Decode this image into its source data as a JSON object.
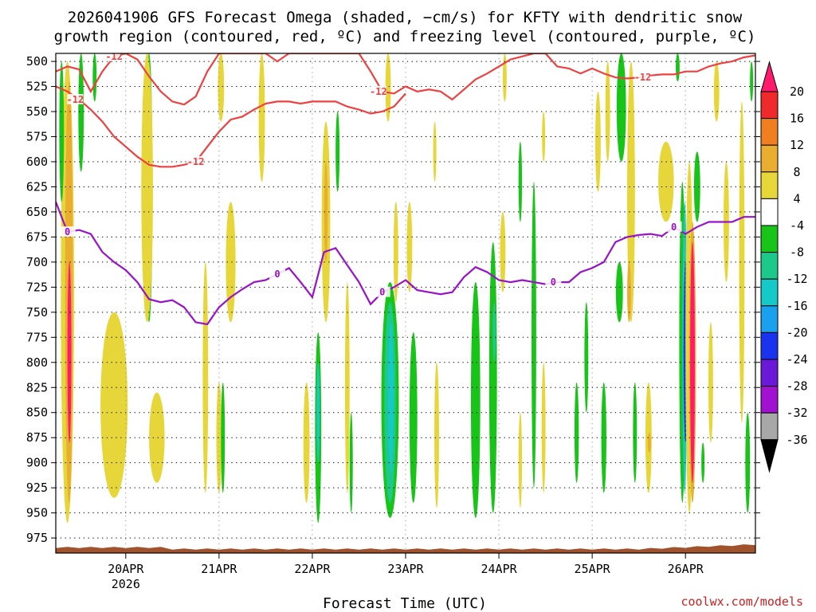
{
  "title": {
    "line1": "2026041906 GFS Forecast Omega (shaded, −cm/s) for KFTY with dendritic snow",
    "line2": "growth region (contoured, red, ºC) and freezing level (contoured, purple, ºC)"
  },
  "credit": "coolwx.com/models",
  "chart_data": {
    "type": "heatmap",
    "title": "2026041906 GFS Forecast Omega (shaded, −cm/s) for KFTY with dendritic snow growth region (contoured, red, ºC) and freezing level (contoured, purple, ºC)",
    "xlabel": "Forecast Time (UTC)",
    "ylabel": "",
    "x_unit": "hours since 2026-04-19 06 UTC",
    "xlim": [
      0,
      180
    ],
    "ylim": [
      990,
      492
    ],
    "y_ticks": [
      500,
      525,
      550,
      575,
      600,
      625,
      650,
      675,
      700,
      725,
      750,
      775,
      800,
      825,
      850,
      875,
      900,
      925,
      950,
      975
    ],
    "x_ticks": [
      {
        "x": 18,
        "label": "20APR",
        "sub": "2026"
      },
      {
        "x": 42,
        "label": "21APR",
        "sub": ""
      },
      {
        "x": 66,
        "label": "22APR",
        "sub": ""
      },
      {
        "x": 90,
        "label": "23APR",
        "sub": ""
      },
      {
        "x": 114,
        "label": "24APR",
        "sub": ""
      },
      {
        "x": 138,
        "label": "25APR",
        "sub": ""
      },
      {
        "x": 162,
        "label": "26APR",
        "sub": ""
      }
    ],
    "grid": true,
    "colorbar": {
      "levels": [
        20,
        16,
        12,
        8,
        4,
        -4,
        -8,
        -12,
        -16,
        -20,
        -24,
        -28,
        -32,
        -36
      ],
      "colors": [
        "#ff1a6e",
        "#ee2a2a",
        "#f07f22",
        "#e9ad30",
        "#e7d63a",
        "#ffffff",
        "#18c418",
        "#1cc88a",
        "#16c9c9",
        "#19a1ee",
        "#1a33ee",
        "#6a1ad6",
        "#a012d0",
        "#a8a8a8",
        "#000000"
      ]
    },
    "omega_features": [
      {
        "name": "yellow-early-1",
        "t": 3.0,
        "p_top": 500,
        "p_bot": 960,
        "w": 3.4,
        "value": 5
      },
      {
        "name": "orange-early",
        "t": 3.4,
        "p_top": 520,
        "p_bot": 940,
        "w": 2.0,
        "value": 10
      },
      {
        "name": "pink-early",
        "t": 3.5,
        "p_top": 700,
        "p_bot": 880,
        "w": 1.0,
        "value": 20
      },
      {
        "name": "green-early-1",
        "t": 1.5,
        "p_top": 500,
        "p_bot": 640,
        "w": 1.2,
        "value": -6
      },
      {
        "name": "green-early-2",
        "t": 6.5,
        "p_top": 492,
        "p_bot": 610,
        "w": 1.4,
        "value": -6
      },
      {
        "name": "green-early-3",
        "t": 10.0,
        "p_top": 492,
        "p_bot": 540,
        "w": 1.0,
        "value": -6
      },
      {
        "name": "yellow-20apr",
        "t": 15.0,
        "p_top": 750,
        "p_bot": 935,
        "w": 7.0,
        "value": 5
      },
      {
        "name": "yellow-20apr-low",
        "t": 26.0,
        "p_top": 830,
        "p_bot": 920,
        "w": 4.0,
        "value": 5
      },
      {
        "name": "green-20apr",
        "t": 24.0,
        "p_top": 492,
        "p_bot": 760,
        "w": 1.8,
        "value": -6
      },
      {
        "name": "yellow-20apr-up",
        "t": 23.5,
        "p_top": 492,
        "p_bot": 760,
        "w": 3.0,
        "value": 5
      },
      {
        "name": "yellow-21apr-a",
        "t": 38.5,
        "p_top": 700,
        "p_bot": 930,
        "w": 1.4,
        "value": 5
      },
      {
        "name": "yellow-21apr-b",
        "t": 42.0,
        "p_top": 820,
        "p_bot": 930,
        "w": 1.4,
        "value": 5
      },
      {
        "name": "green-21apr",
        "t": 43.0,
        "p_top": 820,
        "p_bot": 930,
        "w": 1.0,
        "value": -6
      },
      {
        "name": "yellow-21apr-up",
        "t": 42.5,
        "p_top": 492,
        "p_bot": 560,
        "w": 1.6,
        "value": 5
      },
      {
        "name": "yellow-21apr-m",
        "t": 45.0,
        "p_top": 640,
        "p_bot": 760,
        "w": 2.5,
        "value": 5
      },
      {
        "name": "yellow-22apr-up",
        "t": 53.0,
        "p_top": 492,
        "p_bot": 620,
        "w": 1.6,
        "value": 5
      },
      {
        "name": "yellow-22apr-low",
        "t": 64.5,
        "p_top": 820,
        "p_bot": 940,
        "w": 1.6,
        "value": 5
      },
      {
        "name": "green-22apr-low",
        "t": 67.5,
        "p_top": 770,
        "p_bot": 960,
        "w": 1.6,
        "value": -6
      },
      {
        "name": "cyan-22apr",
        "t": 67.5,
        "p_top": 800,
        "p_bot": 900,
        "w": 0.8,
        "value": -14
      },
      {
        "name": "yellow-22apr-mid",
        "t": 69.5,
        "p_top": 560,
        "p_bot": 760,
        "w": 2.2,
        "value": 5
      },
      {
        "name": "orange-22apr",
        "t": 69.5,
        "p_top": 600,
        "p_bot": 700,
        "w": 0.9,
        "value": 10
      },
      {
        "name": "green-22apr-up",
        "t": 72.5,
        "p_top": 550,
        "p_bot": 630,
        "w": 1.0,
        "value": -6
      },
      {
        "name": "yellow-22apr-b",
        "t": 75.0,
        "p_top": 720,
        "p_bot": 930,
        "w": 1.2,
        "value": 5
      },
      {
        "name": "green-22apr-b",
        "t": 76.0,
        "p_top": 850,
        "p_bot": 950,
        "w": 0.8,
        "value": -6
      },
      {
        "name": "yellow-23apr-up",
        "t": 85.5,
        "p_top": 492,
        "p_bot": 560,
        "w": 1.4,
        "value": 5
      },
      {
        "name": "yellow-23apr-m",
        "t": 87.5,
        "p_top": 640,
        "p_bot": 740,
        "w": 1.2,
        "value": 5
      },
      {
        "name": "green-23apr",
        "t": 86.0,
        "p_top": 720,
        "p_bot": 955,
        "w": 4.5,
        "value": -6
      },
      {
        "name": "teal-23apr",
        "t": 86.0,
        "p_top": 740,
        "p_bot": 940,
        "w": 3.0,
        "value": -10
      },
      {
        "name": "cyan-23apr",
        "t": 86.2,
        "p_top": 760,
        "p_bot": 910,
        "w": 1.4,
        "value": -14
      },
      {
        "name": "yellow-23apr-b",
        "t": 91.0,
        "p_top": 640,
        "p_bot": 730,
        "w": 1.4,
        "value": 5
      },
      {
        "name": "green-23apr-b",
        "t": 92.0,
        "p_top": 770,
        "p_bot": 940,
        "w": 2.0,
        "value": -6
      },
      {
        "name": "yellow-23apr-c",
        "t": 98.0,
        "p_top": 800,
        "p_bot": 945,
        "w": 1.2,
        "value": 5
      },
      {
        "name": "yellow-23apr-d",
        "t": 97.5,
        "p_top": 560,
        "p_bot": 620,
        "w": 0.8,
        "value": 5
      },
      {
        "name": "green-24apr-a",
        "t": 108.0,
        "p_top": 720,
        "p_bot": 955,
        "w": 2.4,
        "value": -6
      },
      {
        "name": "green-24apr-b",
        "t": 112.5,
        "p_top": 680,
        "p_bot": 950,
        "w": 2.0,
        "value": -6
      },
      {
        "name": "teal-24apr",
        "t": 112.8,
        "p_top": 740,
        "p_bot": 800,
        "w": 0.6,
        "value": -10
      },
      {
        "name": "yellow-24apr-a",
        "t": 115.0,
        "p_top": 650,
        "p_bot": 730,
        "w": 1.4,
        "value": 5
      },
      {
        "name": "yellow-24apr-b",
        "t": 115.5,
        "p_top": 492,
        "p_bot": 540,
        "w": 1.0,
        "value": 5
      },
      {
        "name": "green-24apr-c",
        "t": 119.5,
        "p_top": 580,
        "p_bot": 660,
        "w": 0.9,
        "value": -6
      },
      {
        "name": "yellow-24apr-c",
        "t": 119.5,
        "p_top": 850,
        "p_bot": 945,
        "w": 0.9,
        "value": 5
      },
      {
        "name": "green-24apr-d",
        "t": 123.0,
        "p_top": 620,
        "p_bot": 925,
        "w": 1.2,
        "value": -6
      },
      {
        "name": "yellow-24apr-d",
        "t": 125.5,
        "p_top": 550,
        "p_bot": 600,
        "w": 0.8,
        "value": 5
      },
      {
        "name": "yellow-24apr-e",
        "t": 125.5,
        "p_top": 800,
        "p_bot": 930,
        "w": 1.0,
        "value": 5
      },
      {
        "name": "green-25apr-a",
        "t": 134.0,
        "p_top": 820,
        "p_bot": 920,
        "w": 1.1,
        "value": -6
      },
      {
        "name": "green-25apr-b",
        "t": 136.5,
        "p_top": 740,
        "p_bot": 850,
        "w": 1.0,
        "value": -6
      },
      {
        "name": "yellow-25apr-a",
        "t": 139.5,
        "p_top": 530,
        "p_bot": 630,
        "w": 1.4,
        "value": 5
      },
      {
        "name": "yellow-25apr-b",
        "t": 142.0,
        "p_top": 500,
        "p_bot": 600,
        "w": 1.2,
        "value": 5
      },
      {
        "name": "green-25apr-c",
        "t": 141.0,
        "p_top": 820,
        "p_bot": 930,
        "w": 1.3,
        "value": -6
      },
      {
        "name": "cyan-25apr-up",
        "t": 145.5,
        "p_top": 492,
        "p_bot": 560,
        "w": 1.4,
        "value": -14
      },
      {
        "name": "green-25apr-up",
        "t": 145.5,
        "p_top": 492,
        "p_bot": 600,
        "w": 2.4,
        "value": -6
      },
      {
        "name": "yellow-25apr-c",
        "t": 148.0,
        "p_top": 500,
        "p_bot": 760,
        "w": 2.0,
        "value": 5
      },
      {
        "name": "green-25apr-d",
        "t": 145.0,
        "p_top": 700,
        "p_bot": 760,
        "w": 1.8,
        "value": -6
      },
      {
        "name": "orange-25apr",
        "t": 147.5,
        "p_top": 700,
        "p_bot": 760,
        "w": 1.0,
        "value": 10
      },
      {
        "name": "green-25apr-e",
        "t": 149.0,
        "p_top": 820,
        "p_bot": 920,
        "w": 1.0,
        "value": -6
      },
      {
        "name": "yellow-26apr-a",
        "t": 152.5,
        "p_top": 820,
        "p_bot": 930,
        "w": 1.6,
        "value": 5
      },
      {
        "name": "orange-26apr-a",
        "t": 152.7,
        "p_top": 870,
        "p_bot": 890,
        "w": 0.6,
        "value": 10
      },
      {
        "name": "yellow-26apr-b",
        "t": 157.0,
        "p_top": 580,
        "p_bot": 660,
        "w": 4.0,
        "value": 5
      },
      {
        "name": "green-26apr-up",
        "t": 160.0,
        "p_top": 492,
        "p_bot": 520,
        "w": 1.0,
        "value": -6
      },
      {
        "name": "green-26apr",
        "t": 161.2,
        "p_top": 620,
        "p_bot": 940,
        "w": 1.6,
        "value": -6
      },
      {
        "name": "cyan-26apr",
        "t": 161.8,
        "p_top": 640,
        "p_bot": 930,
        "w": 1.2,
        "value": -14
      },
      {
        "name": "blue-26apr",
        "t": 162.0,
        "p_top": 700,
        "p_bot": 880,
        "w": 1.0,
        "value": -22
      },
      {
        "name": "yellow-26apr-c",
        "t": 163.0,
        "p_top": 600,
        "p_bot": 950,
        "w": 2.0,
        "value": 5
      },
      {
        "name": "orange-26apr",
        "t": 163.8,
        "p_top": 660,
        "p_bot": 940,
        "w": 1.8,
        "value": 10
      },
      {
        "name": "pink-26apr",
        "t": 163.8,
        "p_top": 680,
        "p_bot": 920,
        "w": 1.2,
        "value": 20
      },
      {
        "name": "green-26apr-b",
        "t": 165.0,
        "p_top": 590,
        "p_bot": 660,
        "w": 1.6,
        "value": -6
      },
      {
        "name": "green-26apr-c",
        "t": 166.5,
        "p_top": 880,
        "p_bot": 920,
        "w": 0.8,
        "value": -6
      },
      {
        "name": "yellow-26apr-d",
        "t": 168.5,
        "p_top": 760,
        "p_bot": 880,
        "w": 1.2,
        "value": 5
      },
      {
        "name": "yellow-26apr-e",
        "t": 170.0,
        "p_top": 500,
        "p_bot": 560,
        "w": 1.4,
        "value": 5
      },
      {
        "name": "yellow-26apr-f",
        "t": 172.5,
        "p_top": 600,
        "p_bot": 720,
        "w": 1.4,
        "value": 5
      },
      {
        "name": "yellow-27apr-a",
        "t": 176.5,
        "p_top": 540,
        "p_bot": 860,
        "w": 1.4,
        "value": 5
      },
      {
        "name": "green-27apr",
        "t": 178.0,
        "p_top": 850,
        "p_bot": 950,
        "w": 1.2,
        "value": -6
      },
      {
        "name": "green-27apr-up",
        "t": 179.0,
        "p_top": 500,
        "p_bot": 540,
        "w": 0.8,
        "value": -6
      }
    ],
    "series": [
      {
        "name": "dendritic -12C (upper branch)",
        "color": "#ee4040",
        "label": "-12",
        "x": [
          0,
          3,
          6,
          9,
          12,
          15,
          18,
          21,
          24,
          27,
          30,
          33,
          36,
          39,
          42,
          45,
          48,
          51,
          54,
          57,
          60,
          63,
          66,
          69,
          72,
          75,
          78,
          81,
          84,
          87,
          90,
          93,
          96,
          99,
          102,
          105,
          108,
          111,
          114,
          117,
          120,
          123,
          126,
          129,
          132,
          135,
          138,
          141,
          144,
          147,
          150,
          153,
          156,
          159,
          162,
          165,
          168,
          171,
          174,
          177,
          180
        ],
        "y": [
          510,
          505,
          508,
          530,
          510,
          495,
          492,
          498,
          515,
          530,
          540,
          543,
          535,
          510,
          492,
          492,
          492,
          492,
          492,
          500,
          492,
          492,
          492,
          492,
          492,
          492,
          492,
          510,
          530,
          532,
          525,
          530,
          528,
          530,
          538,
          528,
          518,
          512,
          505,
          498,
          495,
          492,
          492,
          505,
          507,
          512,
          507,
          512,
          516,
          517,
          516,
          514,
          513,
          513,
          510,
          510,
          505,
          502,
          500,
          496,
          494
        ]
      },
      {
        "name": "dendritic -12C (lower branch)",
        "color": "#ee4040",
        "label": "-12",
        "x": [
          0,
          3,
          6,
          9,
          12,
          15,
          18,
          21,
          24,
          27,
          30,
          33,
          36,
          39,
          42,
          45,
          48,
          51,
          54,
          57,
          60,
          63,
          66,
          69,
          72,
          75,
          78,
          81,
          84,
          87,
          90
        ],
        "y": [
          525,
          530,
          538,
          548,
          560,
          575,
          585,
          595,
          603,
          605,
          605,
          603,
          600,
          585,
          570,
          558,
          555,
          548,
          542,
          540,
          540,
          542,
          540,
          540,
          540,
          545,
          548,
          552,
          550,
          545,
          532
        ]
      },
      {
        "name": "freezing level 0C",
        "color": "#9a12c8",
        "label": "0",
        "x": [
          0,
          3,
          6,
          9,
          12,
          15,
          18,
          21,
          24,
          27,
          30,
          33,
          36,
          39,
          42,
          45,
          48,
          51,
          54,
          57,
          60,
          63,
          66,
          69,
          72,
          75,
          78,
          81,
          84,
          87,
          90,
          93,
          96,
          99,
          102,
          105,
          108,
          111,
          114,
          117,
          120,
          123,
          126,
          129,
          132,
          135,
          138,
          141,
          144,
          147,
          150,
          153,
          156,
          159,
          162,
          165,
          168,
          171,
          174,
          177,
          180
        ],
        "y": [
          640,
          670,
          668,
          672,
          690,
          700,
          708,
          720,
          737,
          740,
          738,
          745,
          760,
          762,
          745,
          735,
          727,
          720,
          718,
          712,
          706,
          720,
          735,
          690,
          686,
          703,
          720,
          742,
          730,
          725,
          718,
          728,
          730,
          732,
          730,
          715,
          705,
          710,
          718,
          720,
          718,
          720,
          722,
          720,
          720,
          710,
          706,
          700,
          680,
          675,
          673,
          672,
          674,
          665,
          672,
          665,
          660,
          660,
          660,
          655,
          655
        ]
      }
    ]
  }
}
